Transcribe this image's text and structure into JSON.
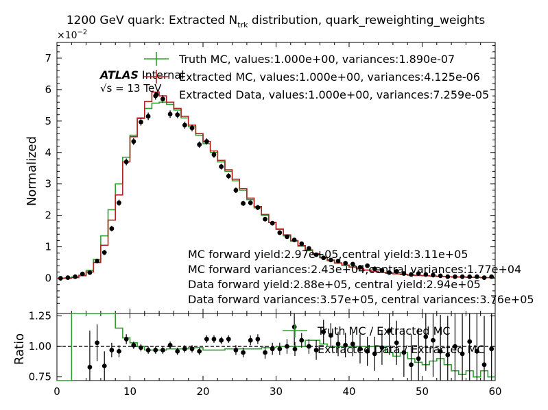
{
  "chart_data": {
    "type": "line",
    "title_main": "1200 GeV quark: Extracted N",
    "title_sub": "trk",
    "title_rest": " distribution, quark_reweighting_weights",
    "exponent_base": "×10",
    "exponent_power": "−2",
    "atlas_label": "ATLAS",
    "atlas_status": "Internal",
    "energy_label": "√s = 13 TeV",
    "ylabel": "Normalized",
    "ratio_ylabel": "Ratio",
    "xlim": [
      0,
      60
    ],
    "ylim": [
      -0.0112,
      0.075
    ],
    "ratio_ylim": [
      0.72,
      1.27
    ],
    "x_ticks": [
      "0",
      "10",
      "20",
      "30",
      "40",
      "50",
      "60"
    ],
    "y_ticks": [
      "0",
      "1",
      "2",
      "3",
      "4",
      "5",
      "6",
      "7"
    ],
    "ratio_ticks": [
      "0.75",
      "1.00",
      "1.25"
    ],
    "legend": [
      {
        "label": "Truth MC, values:1.000e+00, variances:1.890e-07",
        "color": "#2ca02c"
      },
      {
        "label": "Extracted MC, values:1.000e+00, variances:4.125e-06",
        "color": "#b22222"
      },
      {
        "label": "Extracted Data, values:1.000e+00, variances:7.259e-05",
        "color": "#000000"
      }
    ],
    "ratio_legend": [
      {
        "label": "Truth MC / Extracted MC",
        "color": "#2ca02c"
      },
      {
        "label": "Extracted Data / Extracted MC",
        "color": "#000000"
      }
    ],
    "annotations": [
      "MC forward yield:2.97e+05,central yield:3.11e+05",
      "MC forward variances:2.43e+04,central variances:1.77e+04",
      "Data forward yield:2.88e+05, central yield:2.94e+05",
      "Data forward variances:3.57e+05, central variances:3.76e+05"
    ],
    "series": [
      {
        "name": "Truth MC",
        "color": "#2ca02c",
        "style": "step",
        "values": [
          0.0,
          0.0001,
          0.0004,
          0.001,
          0.0025,
          0.006,
          0.0135,
          0.0218,
          0.03,
          0.0385,
          0.0455,
          0.0508,
          0.054,
          0.0557,
          0.056,
          0.0553,
          0.0535,
          0.051,
          0.0482,
          0.0455,
          0.0428,
          0.04,
          0.037,
          0.034,
          0.031,
          0.028,
          0.025,
          0.0224,
          0.02,
          0.0177,
          0.0155,
          0.0135,
          0.0118,
          0.0102,
          0.0088,
          0.0076,
          0.0065,
          0.0056,
          0.0048,
          0.0041,
          0.0035,
          0.003,
          0.0026,
          0.0022,
          0.0019,
          0.0016,
          0.0014,
          0.0012,
          0.001,
          0.0009,
          0.0008,
          0.0007,
          0.0006,
          0.0005,
          0.0004,
          0.0004,
          0.0003,
          0.0003,
          0.0002,
          0.0002
        ]
      },
      {
        "name": "Extracted MC",
        "color": "#b22222",
        "style": "step",
        "values": [
          0.0,
          0.0,
          0.0002,
          0.0008,
          0.002,
          0.005,
          0.0105,
          0.0185,
          0.0265,
          0.037,
          0.045,
          0.051,
          0.0562,
          0.0592,
          0.058,
          0.056,
          0.054,
          0.0515,
          0.0487,
          0.046,
          0.0435,
          0.0405,
          0.0375,
          0.0345,
          0.0315,
          0.0285,
          0.0255,
          0.0228,
          0.0203,
          0.0178,
          0.0157,
          0.0138,
          0.012,
          0.0104,
          0.009,
          0.0078,
          0.0067,
          0.0058,
          0.0049,
          0.0042,
          0.0036,
          0.0031,
          0.0026,
          0.0022,
          0.0019,
          0.0016,
          0.0014,
          0.0012,
          0.001,
          0.0009,
          0.0008,
          0.0007,
          0.0006,
          0.0005,
          0.0004,
          0.0004,
          0.0003,
          0.0003,
          0.0002,
          0.0002
        ]
      },
      {
        "name": "Extracted Data",
        "color": "#000000",
        "style": "points",
        "x": [
          0.5,
          1.5,
          2.5,
          3.5,
          4.5,
          5.5,
          6.5,
          7.5,
          8.5,
          9.5,
          10.5,
          11.5,
          12.5,
          13.5,
          14.5,
          15.5,
          16.5,
          17.5,
          18.5,
          19.5,
          20.5,
          21.5,
          22.5,
          23.5,
          24.5,
          25.5,
          26.5,
          27.5,
          28.5,
          29.5,
          30.5,
          31.5,
          32.5,
          33.5,
          34.5,
          35.5,
          36.5,
          37.5,
          38.5,
          39.5,
          40.5,
          41.5,
          42.5,
          43.5,
          44.5,
          45.5,
          46.5,
          47.5,
          48.5,
          49.5,
          50.5,
          51.5,
          52.5,
          53.5,
          54.5,
          55.5,
          56.5,
          57.5,
          58.5,
          59.5
        ],
        "values": [
          0.0,
          0.0002,
          0.0005,
          0.0014,
          0.0018,
          0.0055,
          0.0082,
          0.0158,
          0.024,
          0.037,
          0.0435,
          0.0497,
          0.0515,
          0.058,
          0.057,
          0.0522,
          0.052,
          0.0487,
          0.0478,
          0.0425,
          0.0435,
          0.0393,
          0.0355,
          0.0325,
          0.028,
          0.0238,
          0.024,
          0.0225,
          0.0188,
          0.0175,
          0.0145,
          0.0132,
          0.0122,
          0.011,
          0.0095,
          0.0075,
          0.0065,
          0.0058,
          0.0055,
          0.0048,
          0.0045,
          0.0035,
          0.004,
          0.003,
          0.0025,
          0.0018,
          0.0022,
          0.0015,
          0.0012,
          0.0015,
          0.0012,
          0.001,
          0.0008,
          0.0005,
          0.0005,
          0.0005,
          0.0005,
          0.0005,
          0.0002,
          0.0005
        ],
        "errors": [
          0.0003,
          0.0003,
          0.0003,
          0.0004,
          0.0005,
          0.0007,
          0.0008,
          0.0009,
          0.001,
          0.0011,
          0.0011,
          0.0012,
          0.0012,
          0.0012,
          0.0012,
          0.0012,
          0.0011,
          0.0011,
          0.0011,
          0.001,
          0.001,
          0.001,
          0.0009,
          0.0009,
          0.0009,
          0.0008,
          0.0008,
          0.0008,
          0.0007,
          0.0007,
          0.0007,
          0.0006,
          0.0006,
          0.0006,
          0.0005,
          0.0005,
          0.0005,
          0.0005,
          0.0004,
          0.0004,
          0.0004,
          0.0004,
          0.0004,
          0.0003,
          0.0003,
          0.0003,
          0.0003,
          0.0003,
          0.0003,
          0.0003,
          0.0003,
          0.0003,
          0.0003,
          0.0003,
          0.0003,
          0.0003,
          0.0003,
          0.0003,
          0.0003,
          0.0003
        ]
      }
    ],
    "ratio_series": [
      {
        "name": "Truth MC / Extracted MC",
        "color": "#2ca02c",
        "style": "step",
        "values": [
          0.72,
          0.72,
          1.3,
          1.3,
          1.3,
          1.3,
          1.3,
          1.3,
          1.15,
          1.07,
          1.03,
          1.0,
          0.97,
          0.97,
          0.97,
          0.98,
          0.98,
          0.98,
          0.99,
          0.99,
          0.97,
          0.97,
          0.97,
          0.98,
          0.98,
          0.98,
          0.98,
          0.98,
          0.99,
          0.99,
          1.0,
          1.0,
          1.0,
          1.0,
          1.05,
          1.05,
          1.02,
          1.0,
          1.0,
          1.0,
          1.0,
          1.0,
          1.0,
          1.0,
          1.0,
          0.95,
          0.92,
          0.95,
          0.9,
          0.87,
          0.85,
          0.88,
          0.9,
          0.85,
          0.8,
          0.77,
          0.8,
          0.75,
          0.8,
          0.75
        ]
      },
      {
        "name": "Extracted Data / Extracted MC",
        "color": "#000000",
        "style": "points",
        "values": [
          null,
          null,
          null,
          null,
          0.83,
          1.03,
          0.84,
          0.97,
          0.96,
          1.06,
          1.01,
          0.99,
          0.97,
          0.97,
          0.97,
          1.01,
          0.96,
          0.98,
          0.98,
          0.96,
          1.06,
          1.06,
          1.05,
          1.06,
          0.97,
          0.95,
          1.05,
          1.06,
          0.95,
          0.98,
          0.98,
          1.0,
          1.16,
          1.05,
          1.0,
          0.97,
          1.12,
          1.09,
          1.02,
          1.01,
          1.02,
          0.98,
          0.96,
          0.94,
          0.99,
          1.13,
          1.03,
          0.95,
          0.85,
          0.9,
          1.08,
          1.05,
          0.96,
          0.93,
          1.0,
          0.94,
          1.04,
          0.96,
          0.85,
          0.98
        ],
        "errors": [
          null,
          null,
          null,
          null,
          0.3,
          0.15,
          0.12,
          0.06,
          0.05,
          0.04,
          0.03,
          0.03,
          0.03,
          0.03,
          0.03,
          0.03,
          0.03,
          0.03,
          0.03,
          0.03,
          0.03,
          0.03,
          0.03,
          0.03,
          0.04,
          0.04,
          0.04,
          0.04,
          0.05,
          0.05,
          0.05,
          0.06,
          0.15,
          0.06,
          0.06,
          0.08,
          0.1,
          0.1,
          0.1,
          0.1,
          0.1,
          0.12,
          0.12,
          0.14,
          0.14,
          0.2,
          0.18,
          0.2,
          0.25,
          0.25,
          0.28,
          0.3,
          0.3,
          0.32,
          0.35,
          0.35,
          0.35,
          0.38,
          0.4,
          0.4
        ]
      }
    ]
  }
}
